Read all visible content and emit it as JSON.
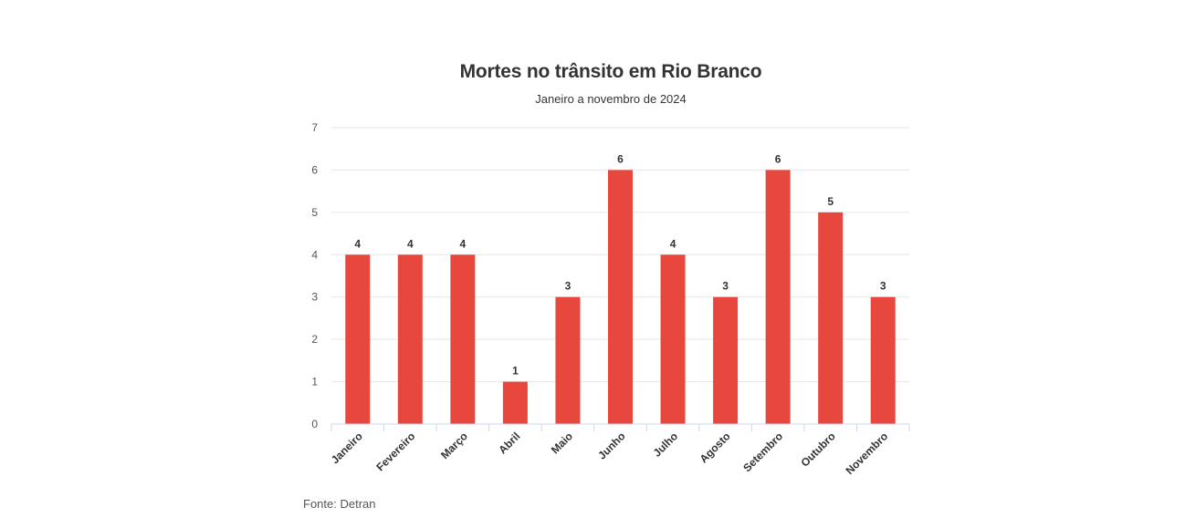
{
  "source": "Fonte: Detran",
  "chart_data": {
    "type": "bar",
    "title": "Mortes no trânsito em Rio Branco",
    "subtitle": "Janeiro a novembro de 2024",
    "categories": [
      "Janeiro",
      "Fevereiro",
      "Março",
      "Abril",
      "Maio",
      "Junho",
      "Julho",
      "Agosto",
      "Setembro",
      "Outubro",
      "Novembro"
    ],
    "values": [
      4,
      4,
      4,
      1,
      3,
      6,
      4,
      3,
      6,
      5,
      3
    ],
    "xlabel": "",
    "ylabel": "",
    "ylim": [
      0,
      7
    ],
    "yticks": [
      0,
      1,
      2,
      3,
      4,
      5,
      6,
      7
    ],
    "grid": true,
    "legend": "none",
    "bar_color": "#e8473e",
    "data_labels": true
  }
}
